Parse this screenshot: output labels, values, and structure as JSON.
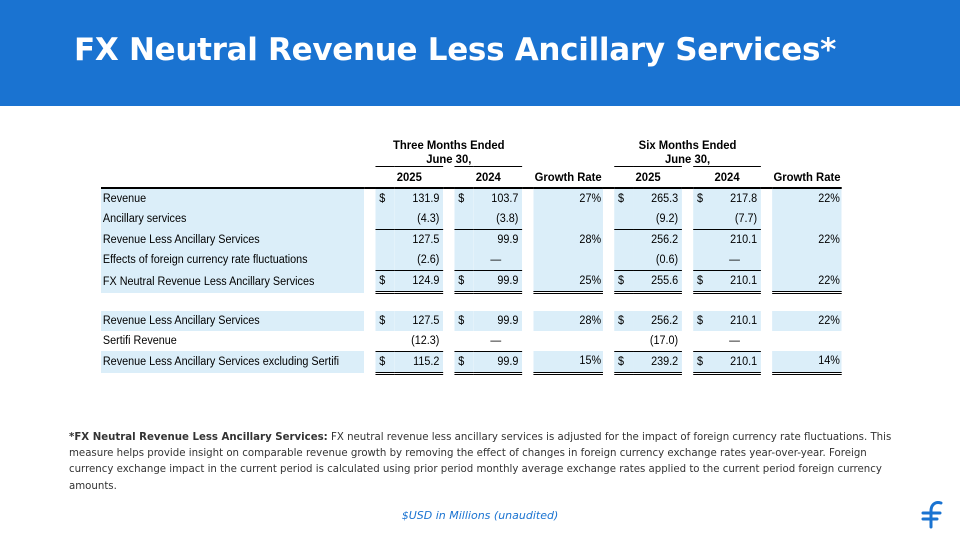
{
  "title": "FX Neutral Revenue Less Ancillary Services*",
  "table": {
    "header": {
      "three_months_line1": "Three Months Ended",
      "three_months_line2": "June 30,",
      "six_months_line1": "Six Months Ended",
      "six_months_line2": "June 30,",
      "year_2025_a": "2025",
      "year_2024_a": "2024",
      "growth_a": "Growth Rate",
      "year_2025_b": "2025",
      "year_2024_b": "2024",
      "growth_b": "Growth Rate"
    },
    "rows": [
      {
        "label": "Revenue",
        "q25": "131.9",
        "q24": "103.7",
        "qg": "27%",
        "h25": "265.3",
        "h24": "217.8",
        "hg": "22%"
      },
      {
        "label": "Ancillary services",
        "q25": "(4.3)",
        "q24": "(3.8)",
        "qg": "",
        "h25": "(9.2)",
        "h24": "(7.7)",
        "hg": ""
      },
      {
        "label": "Revenue Less Ancillary Services",
        "q25": "127.5",
        "q24": "99.9",
        "qg": "28%",
        "h25": "256.2",
        "h24": "210.1",
        "hg": "22%"
      },
      {
        "label": "Effects of foreign currency rate fluctuations",
        "q25": "(2.6)",
        "q24": "—",
        "qg": "",
        "h25": "(0.6)",
        "h24": "—",
        "hg": ""
      },
      {
        "label": "FX Neutral Revenue Less Ancillary Services",
        "q25": "124.9",
        "q24": "99.9",
        "qg": "25%",
        "h25": "255.6",
        "h24": "210.1",
        "hg": "22%"
      },
      {
        "label": "Revenue Less Ancillary Services",
        "q25": "127.5",
        "q24": "99.9",
        "qg": "28%",
        "h25": "256.2",
        "h24": "210.1",
        "hg": "22%"
      },
      {
        "label": "Sertifi Revenue",
        "q25": "(12.3)",
        "q24": "—",
        "qg": "",
        "h25": "(17.0)",
        "h24": "—",
        "hg": ""
      },
      {
        "label": "Revenue Less Ancillary Services excluding Sertifi",
        "q25": "115.2",
        "q24": "99.9",
        "qg": "15%",
        "h25": "239.2",
        "h24": "210.1",
        "hg": "14%"
      }
    ],
    "currency_symbol": "$"
  },
  "footnote": {
    "bold_lead": "*FX Neutral Revenue Less Ancillary Services:",
    "body": " FX neutral revenue less ancillary services is adjusted for the impact of foreign currency rate fluctuations. This measure helps provide insight on comparable revenue growth by removing the effect of changes in foreign currency exchange rates year-over-year. Foreign currency exchange impact in the current period is calculated using prior period monthly average exchange rates applied to the current period foreign currency amounts."
  },
  "units_note": "$USD in Millions (unaudited)",
  "colors": {
    "banner": "#1a73d1",
    "row_shade": "#dbeef9",
    "units_note": "#1a73d1"
  },
  "logo_icon": "flywire-logo-icon"
}
